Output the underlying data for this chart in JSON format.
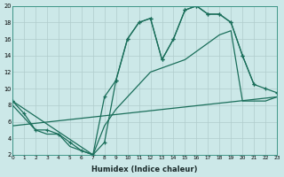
{
  "xlabel": "Humidex (Indice chaleur)",
  "bg_color": "#cce8e8",
  "grid_color": "#b0cccc",
  "line_color": "#1a6e5a",
  "xlim": [
    0,
    23
  ],
  "ylim": [
    2,
    20
  ],
  "xticks": [
    0,
    1,
    2,
    3,
    4,
    5,
    6,
    7,
    8,
    9,
    10,
    11,
    12,
    13,
    14,
    15,
    16,
    17,
    18,
    19,
    20,
    21,
    22,
    23
  ],
  "yticks": [
    2,
    4,
    6,
    8,
    10,
    12,
    14,
    16,
    18,
    20
  ],
  "curve1_x": [
    0,
    1,
    2,
    3,
    4,
    5,
    6,
    7,
    8,
    9,
    10,
    11,
    12,
    13,
    14,
    15,
    16,
    17,
    18,
    19,
    20,
    21
  ],
  "curve1_y": [
    8.5,
    7.0,
    5.0,
    5.0,
    4.5,
    3.5,
    2.5,
    2.0,
    3.5,
    11.0,
    16.0,
    18.0,
    18.5,
    13.5,
    16.0,
    19.5,
    20.0,
    19.0,
    19.0,
    18.0,
    14.0,
    10.5
  ],
  "curve2_x": [
    0,
    7,
    8,
    9,
    10,
    11,
    12,
    13,
    14,
    15,
    16,
    17,
    18,
    19,
    20,
    21,
    22,
    23
  ],
  "curve2_y": [
    8.5,
    2.0,
    9.0,
    11.0,
    16.0,
    18.0,
    18.5,
    13.5,
    16.0,
    19.5,
    20.0,
    19.0,
    19.0,
    18.0,
    14.0,
    10.5,
    10.0,
    9.5
  ],
  "curve3_x": [
    0,
    2,
    3,
    4,
    5,
    6,
    7,
    8,
    9,
    10,
    11,
    12,
    13,
    14,
    15,
    16,
    17,
    18,
    19,
    20,
    21,
    22,
    23
  ],
  "curve3_y": [
    8.0,
    5.0,
    4.5,
    4.5,
    3.0,
    2.5,
    2.0,
    5.5,
    7.5,
    9.0,
    10.5,
    12.0,
    12.5,
    13.0,
    13.5,
    14.5,
    15.5,
    16.5,
    17.0,
    8.5,
    8.5,
    8.5,
    9.0
  ],
  "curve4_x": [
    0,
    23
  ],
  "curve4_y": [
    5.5,
    9.0
  ]
}
